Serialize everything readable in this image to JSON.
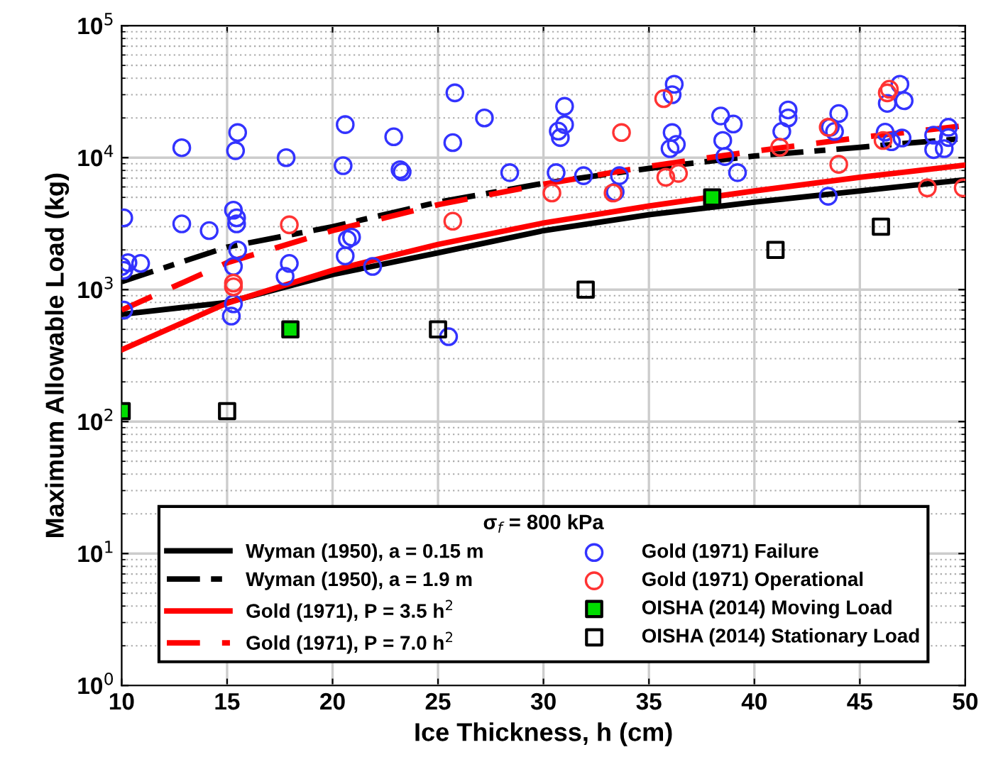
{
  "chart_data": {
    "type": "line",
    "xlabel": "Ice Thickness, h (cm)",
    "ylabel": "Maximum Allowable Load (kg)",
    "legend_title": "σ$_{f}$ = 800 kPa",
    "log": "y",
    "grid": true,
    "legend": "bottom",
    "xlim": [
      10,
      50
    ],
    "xticks": [
      10,
      15,
      20,
      25,
      30,
      35,
      40,
      45,
      50
    ],
    "ylim": [
      1,
      100000
    ],
    "yticks": [
      {
        "value": 1,
        "label": "10$^{0}$"
      },
      {
        "value": 10,
        "label": "10$^{1}$"
      },
      {
        "value": 100,
        "label": "10$^{2}$"
      },
      {
        "value": 1000,
        "label": "10$^{3}$"
      },
      {
        "value": 10000,
        "label": "10$^{4}$"
      },
      {
        "value": 100000,
        "label": "10$^{5}$"
      }
    ],
    "series": [
      {
        "name": "Wyman (1950), a = 0.15 m",
        "line_style": "solid",
        "color": "#000000",
        "x": [
          10,
          15,
          20,
          25,
          30,
          35,
          40,
          45,
          50
        ],
        "values": [
          650,
          800,
          1300,
          1900,
          2800,
          3700,
          4600,
          5600,
          6800
        ]
      },
      {
        "name": "Wyman (1950), a = 1.9 m",
        "line_style": "dashdot",
        "color": "#000000",
        "x": [
          10,
          15,
          20,
          25,
          30,
          35,
          40,
          45,
          50
        ],
        "values": [
          1150,
          2100,
          3000,
          4600,
          6400,
          8300,
          10300,
          12000,
          14000
        ]
      },
      {
        "name": "Gold (1971), P = 3.5 h$^{2}$",
        "line_style": "solid",
        "color": "#ff0000",
        "x": [
          10,
          15,
          20,
          25,
          30,
          35,
          40,
          45,
          50
        ],
        "values": [
          350,
          790,
          1400,
          2200,
          3200,
          4300,
          5600,
          7100,
          8800
        ]
      },
      {
        "name": "Gold (1971), P = 7.0 h$^{2}$",
        "line_style": "dashed",
        "color": "#ff0000",
        "x": [
          10,
          15,
          20,
          25,
          30,
          35,
          40,
          45,
          50
        ],
        "values": [
          700,
          1600,
          2800,
          4400,
          6300,
          8600,
          11200,
          14200,
          17500
        ]
      },
      {
        "name": "Gold (1971) Failure",
        "type": "scatter",
        "marker": "circle",
        "color": "#3333ff",
        "x": [
          10.1,
          10.0,
          10.3,
          10.1,
          10.1,
          12.85,
          15.5,
          15.4,
          17.8,
          20.6,
          20.5,
          22.9,
          23.2,
          23.3,
          12.85,
          14.15,
          15.3,
          15.45,
          15.45,
          15.5,
          10.9,
          15.3,
          17.95,
          17.75,
          20.6,
          20.7,
          20.9,
          21.9,
          15.3,
          15.2,
          25.8,
          27.2,
          25.7,
          28.4,
          31.0,
          31.0,
          30.7,
          30.8,
          30.6,
          31.9,
          33.6,
          33.4,
          36.2,
          36.1,
          36.1,
          36.3,
          36.0,
          25.5,
          38.4,
          39.0,
          38.5,
          38.6,
          39.2,
          41.6,
          41.6,
          41.3,
          44.0,
          43.8,
          43.6,
          43.5,
          46.9,
          47.1,
          46.3,
          46.2,
          46.5,
          47.0,
          48.5,
          48.5,
          49.0,
          49.2,
          49.2
        ],
        "values": [
          3500,
          1500,
          1600,
          1400,
          700,
          11900,
          15500,
          11300,
          10000,
          17800,
          8700,
          14400,
          8100,
          7800,
          3150,
          2800,
          4000,
          3500,
          3150,
          2000,
          1580,
          1500,
          1580,
          1260,
          1800,
          2400,
          2500,
          1500,
          780,
          630,
          31000,
          20000,
          13000,
          7700,
          24500,
          17800,
          15900,
          14200,
          7700,
          7300,
          7300,
          5500,
          36000,
          30000,
          15500,
          12600,
          11700,
          440,
          20700,
          18000,
          13500,
          10200,
          7700,
          23000,
          20000,
          15800,
          21600,
          15800,
          17000,
          5100,
          36000,
          27000,
          25800,
          15600,
          13200,
          14100,
          14800,
          11500,
          11700,
          17000,
          14200
        ]
      },
      {
        "name": "Gold (1971) Operational",
        "type": "scatter",
        "marker": "circle",
        "color": "#ff3333",
        "x": [
          17.95,
          15.3,
          15.3,
          25.7,
          30.4,
          33.7,
          33.3,
          35.7,
          35.8,
          36.4,
          41.2,
          43.5,
          44.0,
          46.3,
          46.4,
          46.1,
          48.2,
          49.9
        ],
        "values": [
          3100,
          1120,
          1050,
          3300,
          5400,
          15500,
          5400,
          28000,
          7100,
          7600,
          12000,
          17000,
          8900,
          31000,
          33000,
          13500,
          5900,
          5900
        ]
      },
      {
        "name": "OISHA (2014) Moving Load",
        "type": "scatter",
        "marker": "square",
        "color": "#00dd00",
        "x": [
          10,
          18,
          38
        ],
        "values": [
          120,
          500,
          5000
        ]
      },
      {
        "name": "OISHA (2014) Stationary Load",
        "type": "scatter",
        "marker": "square",
        "color": "#000000",
        "x": [
          15,
          25,
          32,
          41,
          46
        ],
        "values": [
          120,
          500,
          1000,
          2000,
          3000
        ]
      }
    ]
  }
}
